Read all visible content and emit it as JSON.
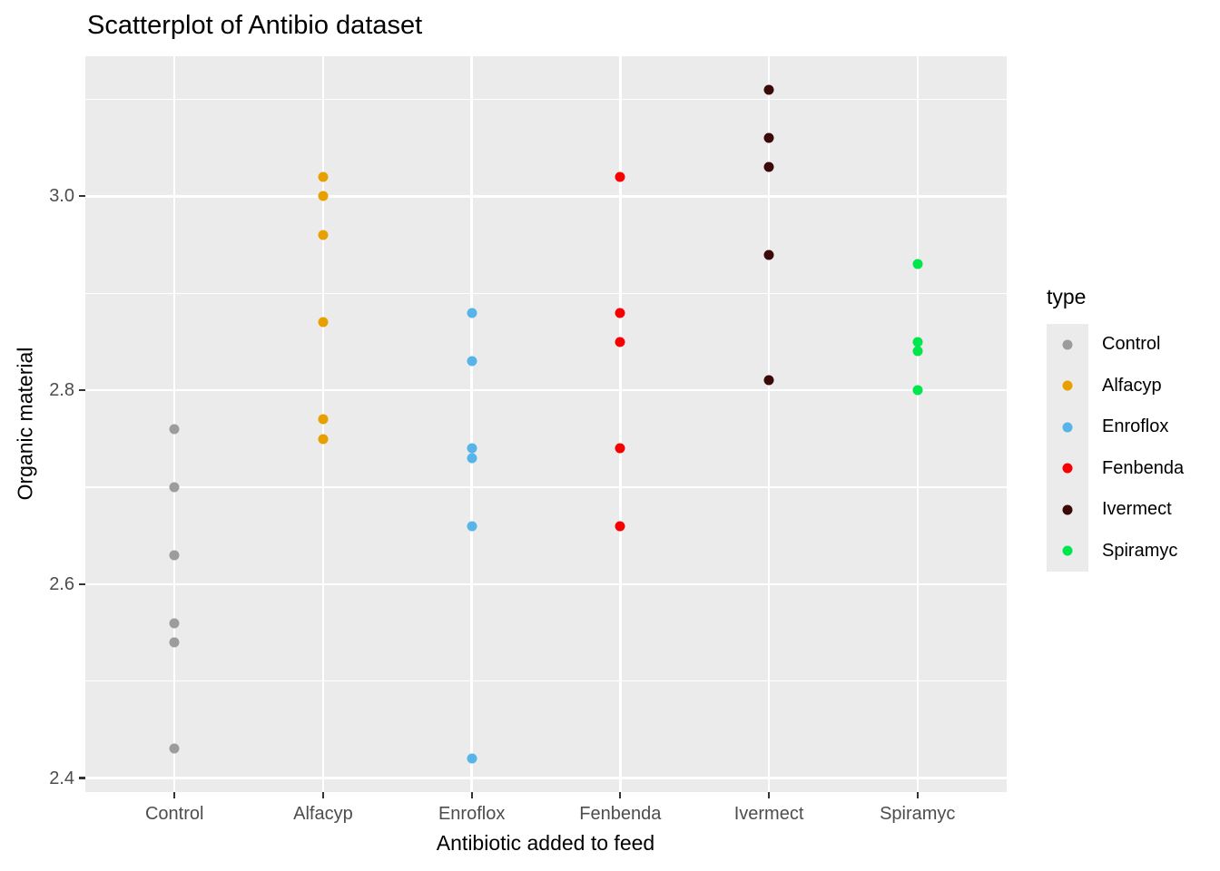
{
  "chart_data": {
    "type": "scatter",
    "title": "Scatterplot of Antibio dataset",
    "xlabel": "Antibiotic added to feed",
    "ylabel": "Organic material",
    "legend_title": "type",
    "legend_position": "right",
    "grid": true,
    "categories": [
      "Control",
      "Alfacyp",
      "Enroflox",
      "Fenbenda",
      "Ivermect",
      "Spiramyc"
    ],
    "ylim": [
      2.3855,
      3.1445
    ],
    "y_major_ticks": [
      2.4,
      2.6,
      2.8,
      3.0
    ],
    "y_major_tick_labels": [
      "2.4",
      "2.6",
      "2.8",
      "3.0"
    ],
    "y_minor_ticks": [
      2.5,
      2.7,
      2.9,
      3.1
    ],
    "series": [
      {
        "name": "Control",
        "color": "#9C9C9C",
        "values": [
          2.76,
          2.7,
          2.63,
          2.56,
          2.54,
          2.43
        ]
      },
      {
        "name": "Alfacyp",
        "color": "#E7A000",
        "values": [
          3.02,
          3.0,
          2.96,
          2.87,
          2.77,
          2.75
        ]
      },
      {
        "name": "Enroflox",
        "color": "#56B4E9",
        "values": [
          2.88,
          2.83,
          2.74,
          2.73,
          2.66,
          2.42
        ]
      },
      {
        "name": "Fenbenda",
        "color": "#F80000",
        "values": [
          3.02,
          2.88,
          2.85,
          2.74,
          2.66
        ]
      },
      {
        "name": "Ivermect",
        "color": "#3B0908",
        "values": [
          3.11,
          3.06,
          3.03,
          2.94,
          2.81
        ]
      },
      {
        "name": "Spiramyc",
        "color": "#00E64C",
        "values": [
          2.93,
          2.85,
          2.84,
          2.8
        ]
      }
    ],
    "panel_bg": "#EBEBEB",
    "grid_color": "#FFFFFF",
    "axis_text_color": "#4D4D4D"
  }
}
